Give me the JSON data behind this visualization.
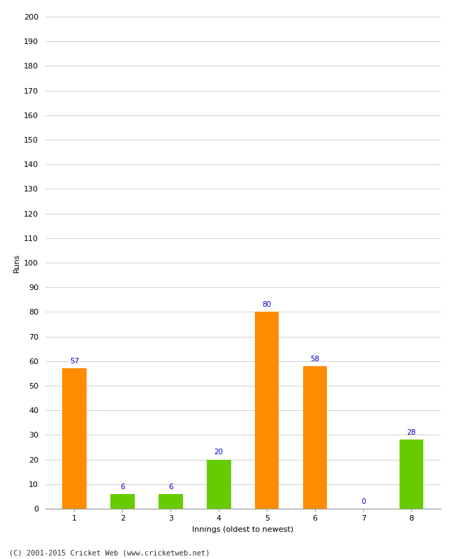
{
  "innings": [
    1,
    2,
    3,
    4,
    5,
    6,
    7,
    8
  ],
  "values": [
    57,
    6,
    6,
    20,
    80,
    58,
    0,
    28
  ],
  "colors": [
    "#ff8c00",
    "#66cc00",
    "#66cc00",
    "#66cc00",
    "#ff8c00",
    "#ff8c00",
    "#66cc00",
    "#66cc00"
  ],
  "xlabel": "Innings (oldest to newest)",
  "ylabel": "Runs",
  "ylim": [
    0,
    200
  ],
  "yticks": [
    0,
    10,
    20,
    30,
    40,
    50,
    60,
    70,
    80,
    90,
    100,
    110,
    120,
    130,
    140,
    150,
    160,
    170,
    180,
    190,
    200
  ],
  "label_color": "#0000cc",
  "label_fontsize": 7.5,
  "footer": "(C) 2001-2015 Cricket Web (www.cricketweb.net)",
  "background_color": "#ffffff",
  "grid_color": "#d0d0d0",
  "axis_label_fontsize": 8,
  "tick_fontsize": 8,
  "bar_width": 0.5
}
